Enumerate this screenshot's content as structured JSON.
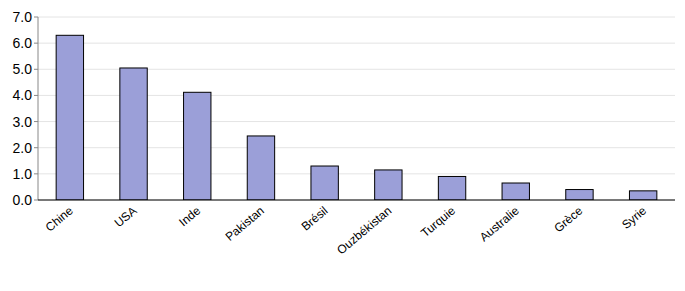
{
  "chart_data": {
    "type": "bar",
    "categories": [
      "Chine",
      "USA",
      "Inde",
      "Pakistan",
      "Brésil",
      "Ouzbékistan",
      "Turquie",
      "Australie",
      "Grèce",
      "Syrie"
    ],
    "values": [
      6.3,
      5.05,
      4.12,
      2.45,
      1.3,
      1.15,
      0.9,
      0.65,
      0.4,
      0.35
    ],
    "color": "#9b9fd8",
    "ylim": [
      0,
      7
    ],
    "yticks": [
      {
        "value": 0,
        "label": "0.0"
      },
      {
        "value": 1,
        "label": "1.0"
      },
      {
        "value": 2,
        "label": "2.0"
      },
      {
        "value": 3,
        "label": "3.0"
      },
      {
        "value": 4,
        "label": "4.0"
      },
      {
        "value": 5,
        "label": "5.0"
      },
      {
        "value": 6,
        "label": "6.0"
      },
      {
        "value": 7,
        "label": "7.0"
      }
    ],
    "grid": true
  }
}
